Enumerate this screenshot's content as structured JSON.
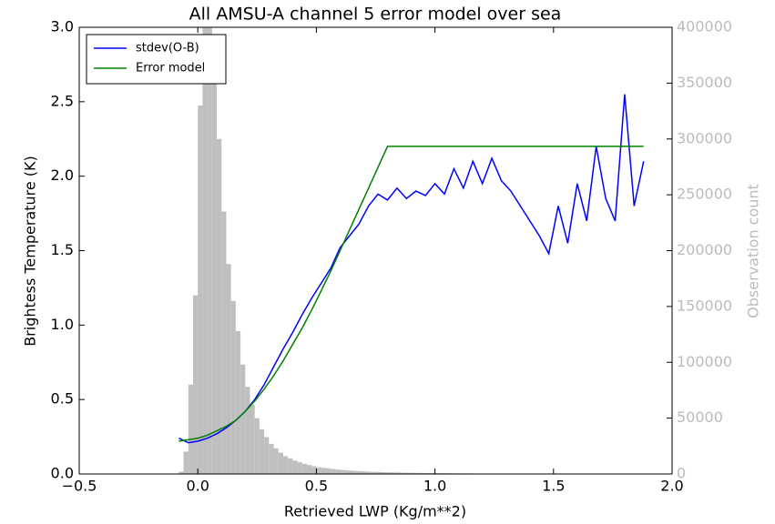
{
  "chart_data": {
    "type": "line",
    "title": "All AMSU-A channel 5 error model over sea",
    "x_label": "Retrieved LWP (Kg/m**2)",
    "y_label": "Brightess Temperature (K)",
    "y2_label": "Observation count",
    "xlim": [
      -0.5,
      2.0
    ],
    "ylim": [
      0,
      3.0
    ],
    "y2lim": [
      0,
      400000
    ],
    "xticks": [
      {
        "value": -0.5,
        "label": "−0.5"
      },
      {
        "value": 0,
        "label": "0.0"
      },
      {
        "value": 0.5,
        "label": "0.5"
      },
      {
        "value": 1,
        "label": "1.0"
      },
      {
        "value": 1.5,
        "label": "1.5"
      },
      {
        "value": 2,
        "label": "2.0"
      }
    ],
    "yticks": [
      {
        "value": 0,
        "label": "0.0"
      },
      {
        "value": 0.5,
        "label": "0.5"
      },
      {
        "value": 1,
        "label": "1.0"
      },
      {
        "value": 1.5,
        "label": "1.5"
      },
      {
        "value": 2,
        "label": "2.0"
      },
      {
        "value": 2.5,
        "label": "2.5"
      },
      {
        "value": 3,
        "label": "3.0"
      }
    ],
    "y2ticks": [
      0,
      50000,
      100000,
      150000,
      200000,
      250000,
      300000,
      350000,
      400000
    ],
    "legend": "upper left",
    "x": [
      -0.08,
      -0.04,
      0,
      0.04,
      0.08,
      0.12,
      0.16,
      0.2,
      0.24,
      0.28,
      0.32,
      0.36,
      0.4,
      0.44,
      0.48,
      0.52,
      0.56,
      0.6,
      0.64,
      0.68,
      0.72,
      0.76,
      0.8,
      0.84,
      0.88,
      0.92,
      0.96,
      1,
      1.04,
      1.08,
      1.12,
      1.16,
      1.2,
      1.24,
      1.28,
      1.32,
      1.36,
      1.4,
      1.44,
      1.48,
      1.52,
      1.56,
      1.6,
      1.64,
      1.68,
      1.72,
      1.76,
      1.8,
      1.84,
      1.88
    ],
    "series": [
      {
        "name": "stdev(O-B)",
        "color": "#0000ff",
        "values": [
          0.24,
          0.21,
          0.22,
          0.24,
          0.27,
          0.31,
          0.36,
          0.42,
          0.5,
          0.6,
          0.72,
          0.84,
          0.95,
          1.07,
          1.18,
          1.28,
          1.38,
          1.52,
          1.6,
          1.68,
          1.8,
          1.88,
          1.84,
          1.92,
          1.85,
          1.9,
          1.87,
          1.95,
          1.88,
          2.05,
          1.92,
          2.1,
          1.95,
          2.12,
          1.97,
          1.9,
          1.8,
          1.7,
          1.6,
          1.48,
          1.8,
          1.55,
          1.95,
          1.7,
          2.2,
          1.85,
          1.7,
          2.55,
          1.8,
          2.1
        ]
      },
      {
        "name": "Error model",
        "color": "#008000",
        "values": [
          0.22,
          0.23,
          0.24,
          0.26,
          0.29,
          0.32,
          0.36,
          0.42,
          0.49,
          0.57,
          0.66,
          0.76,
          0.87,
          0.98,
          1.1,
          1.23,
          1.36,
          1.5,
          1.64,
          1.78,
          1.92,
          2.06,
          2.2,
          2.2,
          2.2,
          2.2,
          2.2,
          2.2,
          2.2,
          2.2,
          2.2,
          2.2,
          2.2,
          2.2,
          2.2,
          2.2,
          2.2,
          2.2,
          2.2,
          2.2,
          2.2,
          2.2,
          2.2,
          2.2,
          2.2,
          2.2,
          2.2,
          2.2,
          2.2,
          2.2
        ]
      }
    ],
    "histogram": {
      "axis": "y2",
      "color": "#bfbfbf",
      "bins": [
        -0.08,
        -0.06,
        -0.04,
        -0.02,
        0,
        0.02,
        0.04,
        0.06,
        0.08,
        0.1,
        0.12,
        0.14,
        0.16,
        0.18,
        0.2,
        0.22,
        0.24,
        0.26,
        0.28,
        0.3,
        0.32,
        0.34,
        0.36,
        0.38,
        0.4,
        0.42,
        0.44,
        0.46,
        0.48,
        0.5,
        0.52,
        0.54,
        0.56,
        0.58,
        0.6,
        0.62,
        0.64,
        0.66,
        0.68,
        0.7,
        0.72,
        0.74,
        0.76,
        0.78,
        0.8,
        0.82,
        0.84,
        0.86,
        0.88,
        0.9,
        0.92,
        0.94,
        0.96,
        0.98,
        1,
        1.02,
        1.04,
        1.06,
        1.08,
        1.1,
        1.12,
        1.14,
        1.16,
        1.18,
        1.2,
        1.22,
        1.24,
        1.26,
        1.28,
        1.3,
        1.32,
        1.34,
        1.36,
        1.38,
        1.4,
        1.42,
        1.44,
        1.46,
        1.48,
        1.5,
        1.52,
        1.54,
        1.56,
        1.58,
        1.6,
        1.62
      ],
      "counts": [
        2000,
        20000,
        80000,
        160000,
        330000,
        410000,
        430000,
        370000,
        300000,
        235000,
        188000,
        155000,
        128000,
        98000,
        78000,
        62000,
        50000,
        40000,
        33000,
        27000,
        23000,
        19000,
        16000,
        14000,
        12000,
        10500,
        9000,
        8000,
        7000,
        6000,
        5500,
        5000,
        4500,
        4000,
        3600,
        3200,
        3000,
        2700,
        2500,
        2200,
        2000,
        1900,
        1800,
        1600,
        1500,
        1400,
        1300,
        1200,
        1100,
        1000,
        950,
        900,
        850,
        800,
        750,
        700,
        650,
        600,
        560,
        520,
        480,
        450,
        420,
        400,
        380,
        360,
        340,
        320,
        300,
        280,
        260,
        240,
        220,
        200,
        190,
        180,
        170,
        160,
        150,
        140,
        130,
        120,
        110,
        100,
        90
      ]
    }
  }
}
